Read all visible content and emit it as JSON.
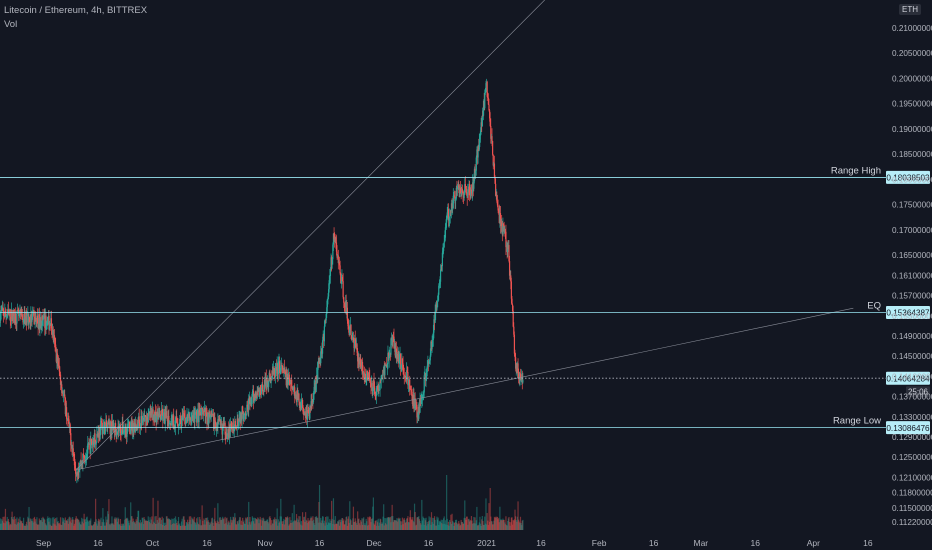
{
  "header": {
    "symbol_line": "Litecoin / Ethereum, 4h, BITTREX",
    "volume_label": "Vol",
    "currency_label": "ETH"
  },
  "colors": {
    "background": "#131722",
    "up": "#26a69a",
    "down": "#ef5350",
    "level_line": "#9ae6f3",
    "trendline": "#8a8e99",
    "axis_text": "#b2b5be",
    "tag_bg": "#b7eef8",
    "tag_text": "#131722"
  },
  "chart_data": {
    "type": "candlestick",
    "title": "Litecoin / Ethereum, 4h, BITTREX",
    "ylim": [
      0.1106,
      0.2155
    ],
    "y_tick_labels": [
      "0.21000000",
      "0.20500000",
      "0.20000000",
      "0.19500000",
      "0.19000000",
      "0.18500000",
      "0.18000000",
      "0.17500000",
      "0.17000000",
      "0.16500000",
      "0.16100000",
      "0.15700000",
      "0.15300000",
      "0.14900000",
      "0.14500000",
      "0.14100000",
      "0.13700000",
      "0.13300000",
      "0.12900000",
      "0.12500000",
      "0.12100000",
      "0.11800000",
      "0.11500000",
      "0.11220000"
    ],
    "y_tick_values": [
      0.21,
      0.205,
      0.2,
      0.195,
      0.19,
      0.185,
      0.18,
      0.175,
      0.17,
      0.165,
      0.161,
      0.157,
      0.153,
      0.149,
      0.145,
      0.141,
      0.137,
      0.133,
      0.129,
      0.125,
      0.121,
      0.118,
      0.115,
      0.1122
    ],
    "x_tick_labels": [
      "Sep",
      "16",
      "Oct",
      "16",
      "Nov",
      "16",
      "Dec",
      "16",
      "2021",
      "16",
      "Feb",
      "16",
      "Mar",
      "16",
      "Apr",
      "16"
    ],
    "x_tick_dates": [
      "2020-09-01",
      "2020-09-16",
      "2020-10-01",
      "2020-10-16",
      "2020-11-01",
      "2020-11-16",
      "2020-12-01",
      "2020-12-16",
      "2021-01-01",
      "2021-01-16",
      "2021-02-01",
      "2021-02-16",
      "2021-03-01",
      "2021-03-16",
      "2021-04-01",
      "2021-04-16"
    ],
    "x_range": [
      "2020-08-20",
      "2021-04-21"
    ],
    "series_trend": {
      "dates": [
        "2020-08-20",
        "2020-09-03",
        "2020-09-10",
        "2020-09-17",
        "2020-09-24",
        "2020-10-01",
        "2020-10-08",
        "2020-10-15",
        "2020-10-22",
        "2020-10-29",
        "2020-11-05",
        "2020-11-09",
        "2020-11-13",
        "2020-11-17",
        "2020-11-20",
        "2020-11-24",
        "2020-11-28",
        "2020-12-02",
        "2020-12-06",
        "2020-12-10",
        "2020-12-13",
        "2020-12-17",
        "2020-12-21",
        "2020-12-24",
        "2020-12-28",
        "2021-01-01",
        "2021-01-04",
        "2021-01-07",
        "2021-01-09",
        "2021-01-11"
      ],
      "prices": [
        0.1535,
        0.1515,
        0.1225,
        0.131,
        0.1305,
        0.1335,
        0.132,
        0.1335,
        0.13,
        0.137,
        0.143,
        0.138,
        0.133,
        0.148,
        0.169,
        0.151,
        0.142,
        0.138,
        0.148,
        0.141,
        0.133,
        0.148,
        0.172,
        0.178,
        0.1775,
        0.199,
        0.174,
        0.166,
        0.143,
        0.1395
      ]
    },
    "volume_peaks": [
      {
        "date": "2020-11-16",
        "volume": 45
      },
      {
        "date": "2020-12-21",
        "volume": 55
      },
      {
        "date": "2021-01-02",
        "volume": 42
      }
    ],
    "horizontal_levels": [
      {
        "label": "Range High",
        "price": 0.18038503,
        "price_label": "0.18038503"
      },
      {
        "label": "EQ",
        "price": 0.15364387,
        "price_label": "0.15364387"
      },
      {
        "label": "",
        "price": 0.14064284,
        "price_label": "0.14064284",
        "style": "dotted"
      },
      {
        "label": "Range Low",
        "price": 0.13086476,
        "price_label": "0.13086476"
      }
    ],
    "trendlines": [
      {
        "from": {
          "date": "2020-09-10",
          "price": 0.1225
        },
        "to": {
          "date": "2021-01-17",
          "price": 0.2155
        }
      },
      {
        "from": {
          "date": "2020-09-10",
          "price": 0.1225
        },
        "to": {
          "date": "2021-04-12",
          "price": 0.1545
        }
      }
    ],
    "countdown_label": "25:06"
  }
}
